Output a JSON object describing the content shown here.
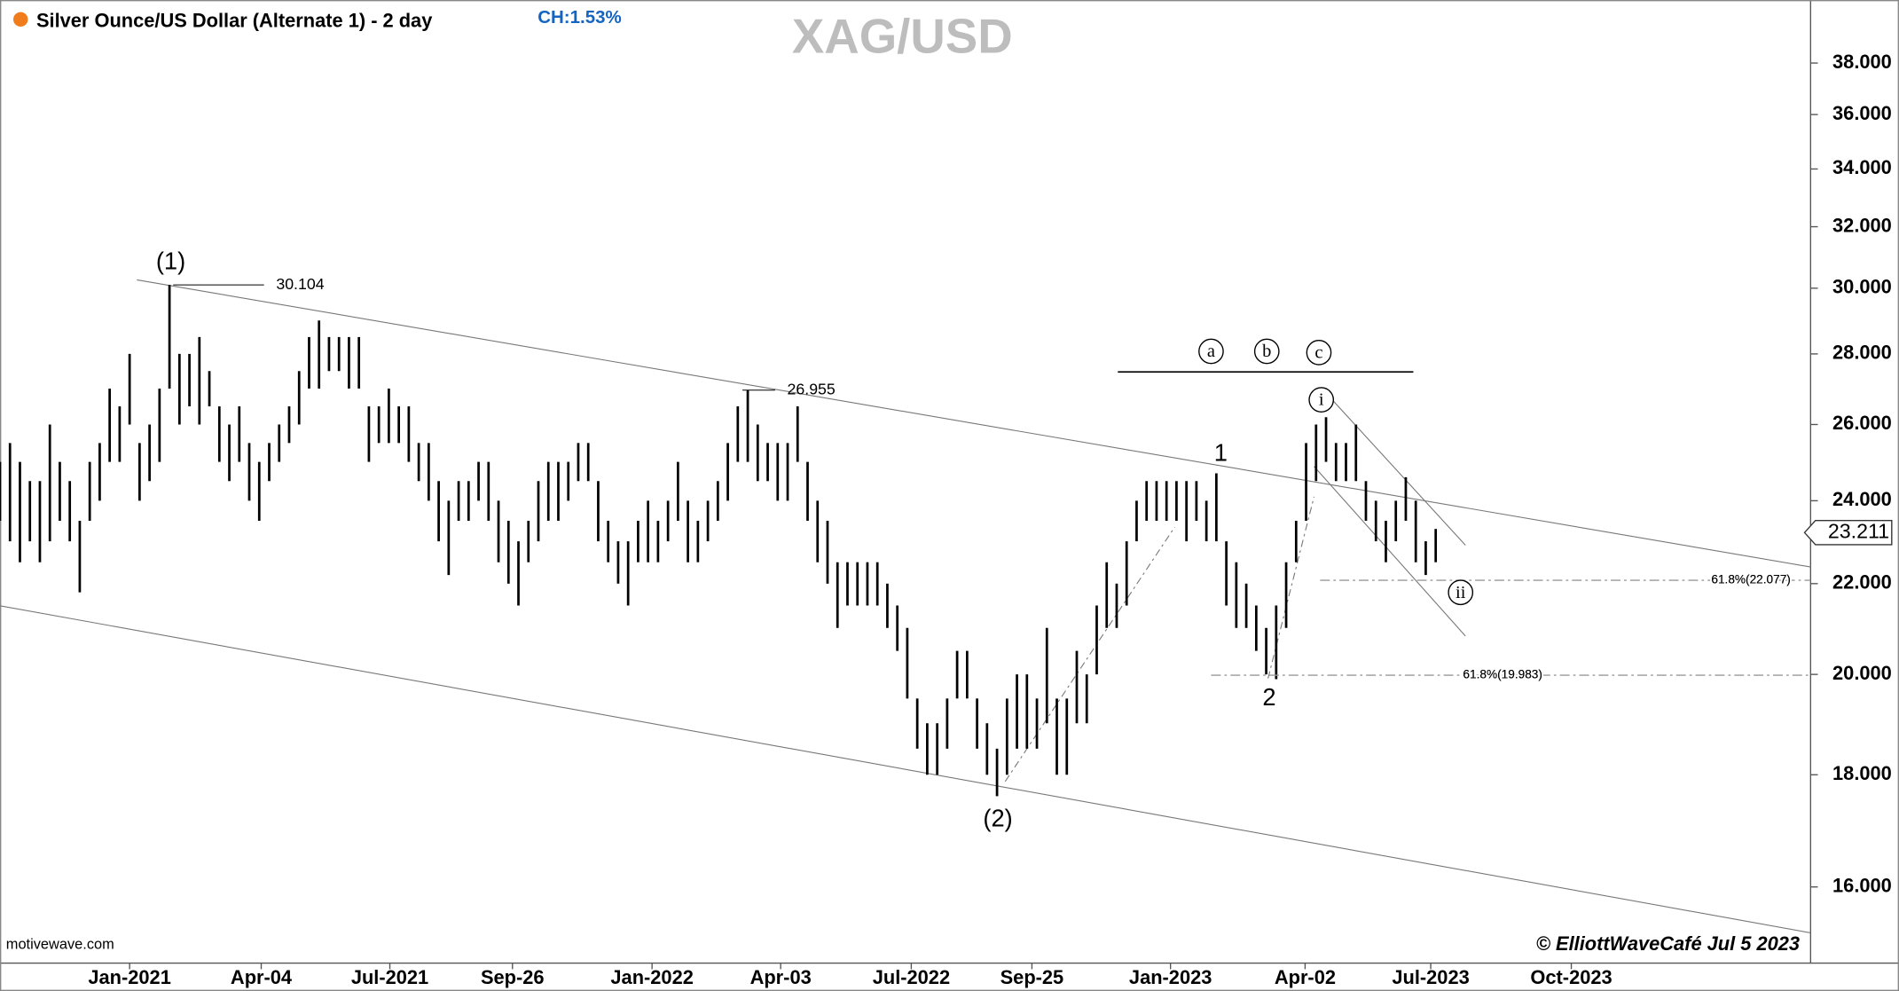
{
  "chart_data": {
    "type": "ohlc",
    "title": "Silver Ounce/US Dollar (Alternate 1) - 2 day",
    "change": "CH:1.53%",
    "symbol": "XAG/USD",
    "source": "motivewave.com",
    "copyright": "© ElliottWaveCafé Jul 5 2023",
    "color": "#000000",
    "log_scale": true,
    "ylim": [
      14.77,
      40.6
    ],
    "yticks": [
      {
        "value": 16,
        "label": "16.000"
      },
      {
        "value": 18,
        "label": "18.000"
      },
      {
        "value": 20,
        "label": "20.000"
      },
      {
        "value": 22,
        "label": "22.000"
      },
      {
        "value": 24,
        "label": "24.000"
      },
      {
        "value": 26,
        "label": "26.000"
      },
      {
        "value": 28,
        "label": "28.000"
      },
      {
        "value": 30,
        "label": "30.000"
      },
      {
        "value": 32,
        "label": "32.000"
      },
      {
        "value": 34,
        "label": "34.000"
      },
      {
        "value": 36,
        "label": "36.000"
      },
      {
        "value": 38,
        "label": "38.000"
      }
    ],
    "xlim": [
      0,
      181.6
    ],
    "xticks": [
      {
        "value": 13,
        "label": "Jan-2021"
      },
      {
        "value": 26.2,
        "label": "Apr-04"
      },
      {
        "value": 39.1,
        "label": "Jul-2021"
      },
      {
        "value": 51.4,
        "label": "Sep-26"
      },
      {
        "value": 65.4,
        "label": "Jan-2022"
      },
      {
        "value": 78.3,
        "label": "Apr-03"
      },
      {
        "value": 91.4,
        "label": "Jul-2022"
      },
      {
        "value": 103.5,
        "label": "Sep-25"
      },
      {
        "value": 117.4,
        "label": "Jan-2023"
      },
      {
        "value": 130.9,
        "label": "Apr-02"
      },
      {
        "value": 143.5,
        "label": "Jul-2023"
      },
      {
        "value": 157.6,
        "label": "Oct-2023"
      }
    ],
    "x": [
      0,
      1,
      2,
      3,
      4,
      5,
      6,
      7,
      8,
      9,
      10,
      11,
      12,
      13,
      14,
      15,
      16,
      17,
      18,
      19,
      20,
      21,
      22,
      23,
      24,
      25,
      26,
      27,
      28,
      29,
      30,
      31,
      32,
      33,
      34,
      35,
      36,
      37,
      38,
      39,
      40,
      41,
      42,
      43,
      44,
      45,
      46,
      47,
      48,
      49,
      50,
      51,
      52,
      53,
      54,
      55,
      56,
      57,
      58,
      59,
      60,
      61,
      62,
      63,
      64,
      65,
      66,
      67,
      68,
      69,
      70,
      71,
      72,
      73,
      74,
      75,
      76,
      77,
      78,
      79,
      80,
      81,
      82,
      83,
      84,
      85,
      86,
      87,
      88,
      89,
      90,
      91,
      92,
      93,
      94,
      95,
      96,
      97,
      98,
      99,
      100,
      101,
      102,
      103,
      104,
      105,
      106,
      107,
      108,
      109,
      110,
      111,
      112,
      113,
      114,
      115,
      116,
      117,
      118,
      119,
      120,
      121,
      122,
      123,
      124,
      125,
      126,
      127,
      128,
      129,
      130,
      131,
      132,
      133,
      134,
      135,
      136,
      137,
      138,
      139,
      140,
      141,
      142,
      143,
      144
    ],
    "high": [
      25,
      25.5,
      25,
      24.5,
      24.5,
      26,
      25,
      24.5,
      23.5,
      25,
      25.5,
      27,
      26.5,
      28,
      25.5,
      26,
      27,
      30.104,
      28,
      28,
      28.5,
      27.5,
      26.5,
      26,
      26.5,
      25.5,
      25,
      25.5,
      26,
      26.5,
      27.5,
      28.5,
      29,
      28.5,
      28.5,
      28.5,
      28.5,
      26.5,
      26.5,
      27,
      26.5,
      26.5,
      25.5,
      25.5,
      24.5,
      24,
      24.5,
      24.5,
      25,
      25,
      24,
      23.5,
      23,
      23.5,
      24.5,
      25,
      25,
      25,
      25.5,
      25.5,
      24.5,
      23.5,
      23,
      23,
      23.5,
      24,
      23.5,
      24,
      25,
      24,
      23.5,
      24,
      24.5,
      25.5,
      26.5,
      26.955,
      26,
      25.5,
      25.5,
      25.5,
      26.5,
      25,
      24,
      23.5,
      22.5,
      22.5,
      22.5,
      22.5,
      22.5,
      22,
      21.5,
      21,
      19.5,
      19,
      19,
      19.5,
      20.5,
      20.5,
      19.5,
      19,
      18.5,
      19.5,
      20,
      20,
      19.5,
      21,
      19.5,
      19.5,
      20.5,
      20,
      21.5,
      22.5,
      22,
      23,
      24,
      24.5,
      24.5,
      24.5,
      24.5,
      24.5,
      24.5,
      24,
      24.7,
      23,
      22.5,
      22,
      21.5,
      21,
      21.5,
      22.5,
      23.5,
      25.5,
      26,
      26.2,
      25.5,
      25.5,
      26,
      24.5,
      24,
      23.5,
      24,
      24.6,
      24,
      23,
      23.3
    ],
    "low": [
      23.5,
      23,
      22.5,
      23,
      22.5,
      23,
      23.5,
      23,
      21.8,
      23.5,
      24,
      25,
      25,
      26,
      24,
      24.5,
      25,
      27,
      26,
      26.5,
      26,
      26.5,
      25,
      24.5,
      25,
      24,
      23.5,
      24.5,
      25,
      25.5,
      26,
      27,
      27,
      27.5,
      27.5,
      27,
      27,
      25,
      25.5,
      25.5,
      25.5,
      25,
      24.5,
      24,
      23,
      22.2,
      23.5,
      23.5,
      24,
      23.5,
      22.5,
      22,
      21.5,
      22.5,
      23,
      23.5,
      23.5,
      24,
      24.5,
      24.5,
      23,
      22.5,
      22,
      21.5,
      22.5,
      22.5,
      22.5,
      23,
      23.5,
      22.5,
      22.5,
      23,
      23.5,
      24,
      25,
      25,
      24.5,
      24.5,
      24,
      24,
      25,
      23.5,
      22.5,
      22,
      21,
      21.5,
      21.5,
      21.5,
      21.5,
      21,
      20.5,
      19.5,
      18.5,
      18,
      18,
      18.5,
      19.5,
      19.5,
      18.5,
      18,
      17.6,
      18,
      18.5,
      18.5,
      18.5,
      19,
      18,
      18,
      19,
      19,
      20,
      21,
      21,
      21.5,
      23,
      23.5,
      23.5,
      23.5,
      23.5,
      23,
      23.5,
      23,
      23,
      21.5,
      21,
      21,
      20.5,
      20,
      19.9,
      21,
      22.5,
      23.5,
      24.5,
      25,
      24.5,
      24.5,
      24.5,
      23.5,
      23,
      22.5,
      23,
      23.5,
      22.5,
      22.2,
      22.5
    ],
    "last_price": 23.211,
    "peak_labels": [
      30.104,
      26.955
    ],
    "fib_levels": [
      {
        "value": 22.077,
        "label": "61.8%(22.077)"
      },
      {
        "value": 19.983,
        "label": "61.8%(19.983)"
      }
    ],
    "wave_labels": [
      "(1)",
      "(2)",
      "1",
      "2",
      "a",
      "b",
      "c",
      "i",
      "ii"
    ]
  }
}
